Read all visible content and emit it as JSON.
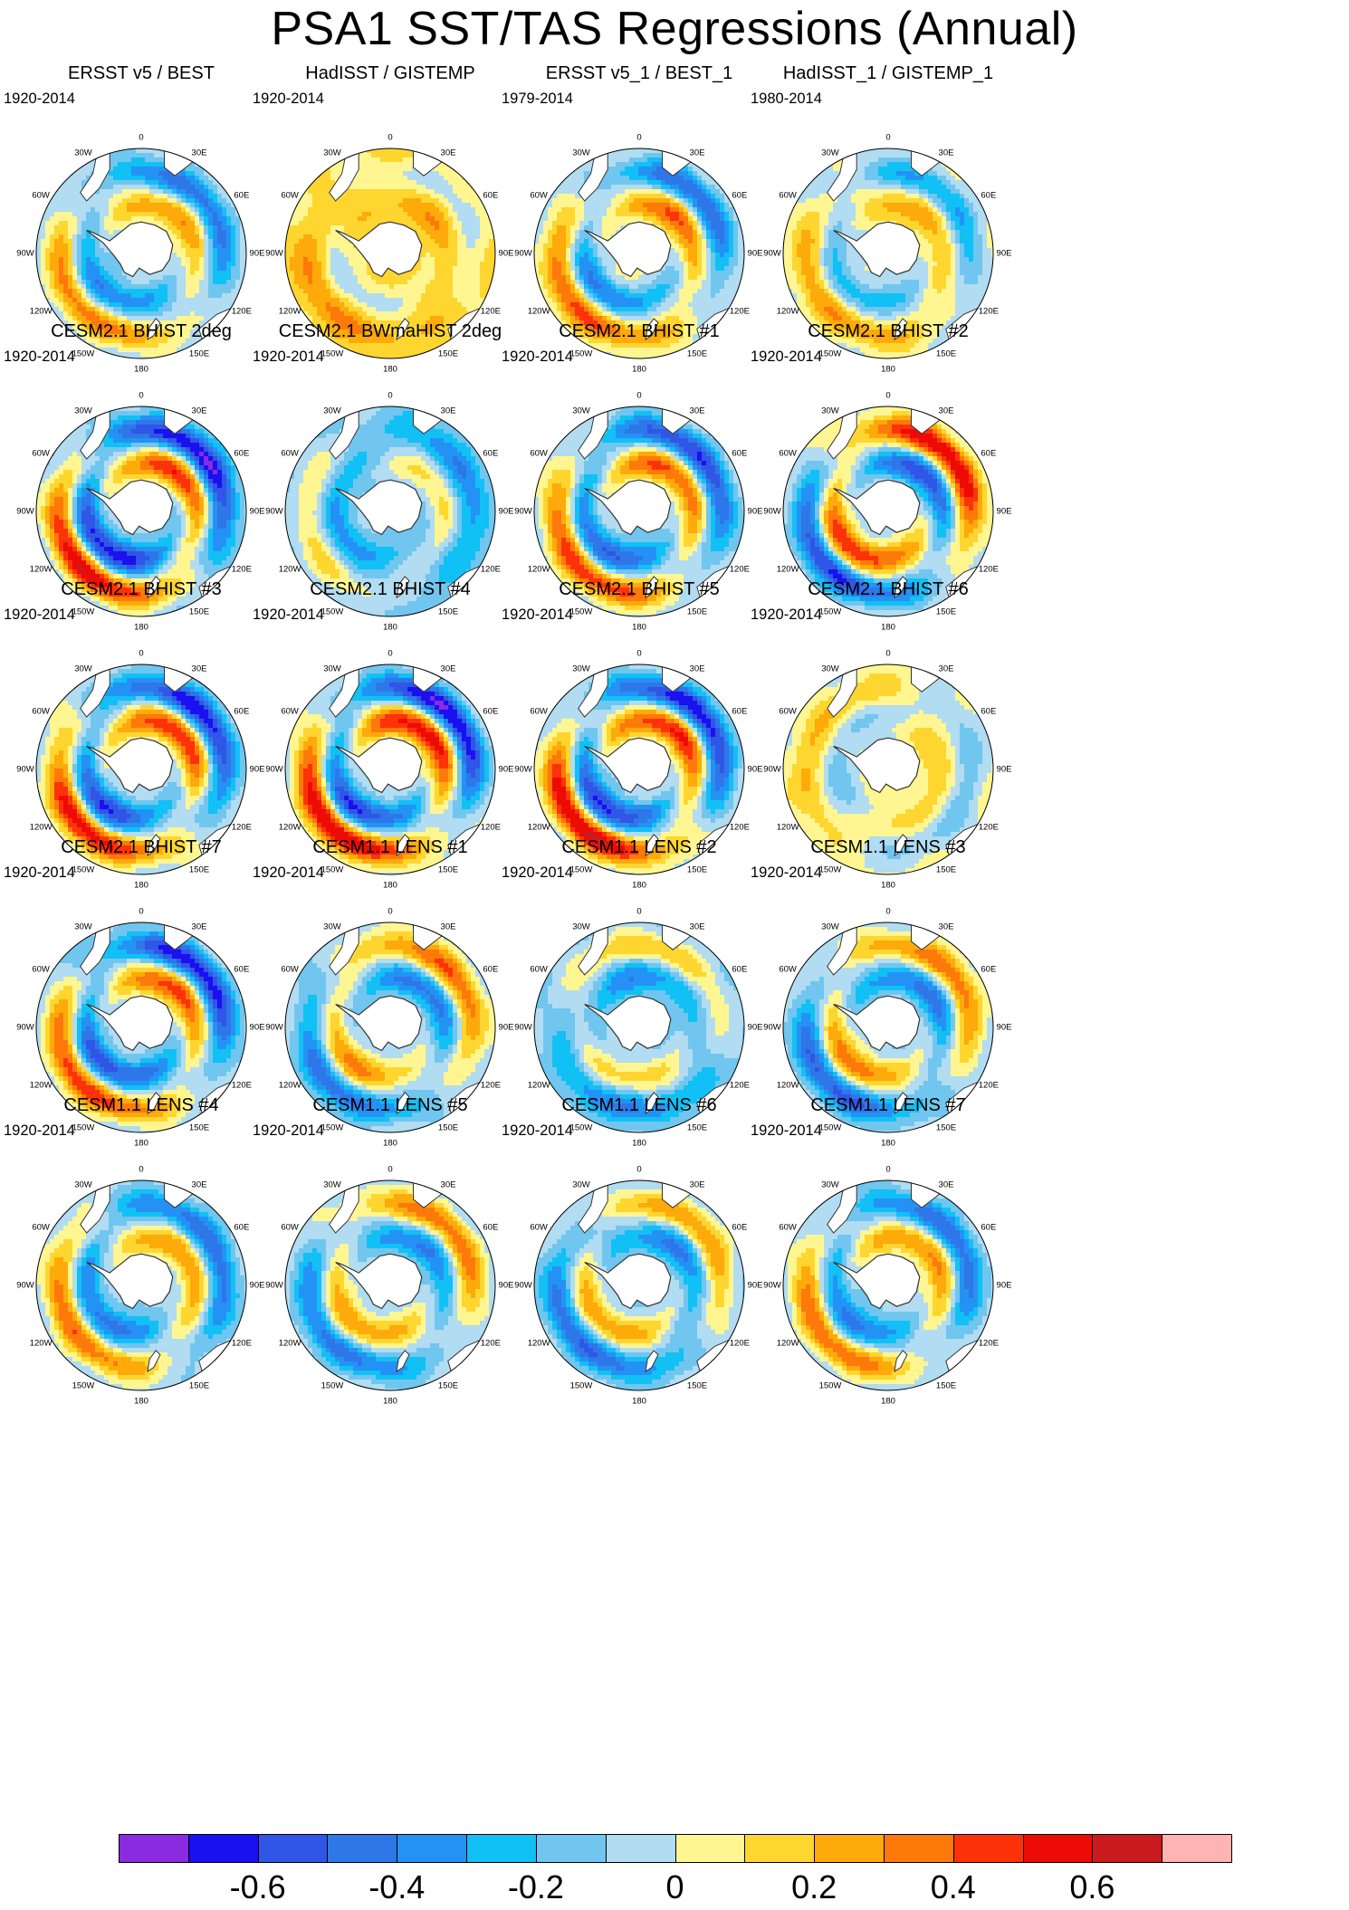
{
  "title": "PSA1 SST/TAS Regressions (Annual)",
  "lon_labels": [
    "0",
    "30E",
    "60E",
    "90E",
    "120E",
    "150E",
    "180",
    "150W",
    "120W",
    "90W",
    "60W",
    "30W"
  ],
  "panels": [
    {
      "title": "ERSST v5 / BEST",
      "period": "1920-2014",
      "pattern": {
        "amp": 0.42,
        "shift": 0.0,
        "base": -0.05
      }
    },
    {
      "title": "HadISST / GISTEMP",
      "period": "1920-2014",
      "pattern": {
        "amp": 0.18,
        "shift": 0.0,
        "base": 0.12
      }
    },
    {
      "title": "ERSST v5_1 / BEST_1",
      "period": "1979-2014",
      "pattern": {
        "amp": 0.45,
        "shift": 0.0,
        "base": -0.02
      }
    },
    {
      "title": "HadISST_1 / GISTEMP_1",
      "period": "1980-2014",
      "pattern": {
        "amp": 0.32,
        "shift": 0.0,
        "base": 0.0
      }
    },
    {
      "title": "CESM2.1 BHIST 2deg",
      "period": "1920-2014",
      "pattern": {
        "amp": 0.65,
        "shift": 0.0,
        "base": -0.08
      }
    },
    {
      "title": "CESM2.1 BWmaHIST 2deg",
      "period": "1920-2014",
      "pattern": {
        "amp": 0.25,
        "shift": 0.4,
        "base": -0.12
      }
    },
    {
      "title": "CESM2.1 BHIST #1",
      "period": "1920-2014",
      "pattern": {
        "amp": 0.55,
        "shift": 0.0,
        "base": -0.05
      }
    },
    {
      "title": "CESM2.1 BHIST #2",
      "period": "1920-2014",
      "pattern": {
        "amp": 0.6,
        "shift": 3.14,
        "base": -0.02
      }
    },
    {
      "title": "CESM2.1 BHIST #3",
      "period": "1920-2014",
      "pattern": {
        "amp": 0.6,
        "shift": 0.0,
        "base": -0.05
      }
    },
    {
      "title": "CESM2.1 BHIST #4",
      "period": "1920-2014",
      "pattern": {
        "amp": 0.68,
        "shift": 0.0,
        "base": -0.03
      }
    },
    {
      "title": "CESM2.1 BHIST #5",
      "period": "1920-2014",
      "pattern": {
        "amp": 0.66,
        "shift": 0.0,
        "base": -0.04
      }
    },
    {
      "title": "CESM2.1 BHIST #6",
      "period": "1920-2014",
      "pattern": {
        "amp": 0.2,
        "shift": 1.2,
        "base": 0.02
      }
    },
    {
      "title": "CESM2.1 BHIST #7",
      "period": "1920-2014",
      "pattern": {
        "amp": 0.58,
        "shift": 0.0,
        "base": -0.07
      }
    },
    {
      "title": "CESM1.1 LENS #1",
      "period": "1920-2014",
      "pattern": {
        "amp": 0.42,
        "shift": 3.14,
        "base": -0.05
      }
    },
    {
      "title": "CESM1.1 LENS #2",
      "period": "1920-2014",
      "pattern": {
        "amp": 0.3,
        "shift": 2.6,
        "base": -0.1
      }
    },
    {
      "title": "CESM1.1 LENS #3",
      "period": "1920-2014",
      "pattern": {
        "amp": 0.45,
        "shift": 3.14,
        "base": -0.06
      }
    },
    {
      "title": "CESM1.1 LENS #4",
      "period": "1920-2014",
      "pattern": {
        "amp": 0.45,
        "shift": 0.2,
        "base": -0.06
      }
    },
    {
      "title": "CESM1.1 LENS #5",
      "period": "1920-2014",
      "pattern": {
        "amp": 0.42,
        "shift": 3.14,
        "base": -0.05
      }
    },
    {
      "title": "CESM1.1 LENS #6",
      "period": "1920-2014",
      "pattern": {
        "amp": 0.4,
        "shift": 3.14,
        "base": -0.08
      }
    },
    {
      "title": "CESM1.1 LENS #7",
      "period": "1920-2014",
      "pattern": {
        "amp": 0.45,
        "shift": 0.1,
        "base": -0.05
      }
    }
  ],
  "chart_data": {
    "type": "heatmap",
    "title": "PSA1 SST/TAS Regressions (Annual)",
    "projection": "south polar stereographic",
    "levels": [
      -0.7,
      -0.6,
      -0.5,
      -0.4,
      -0.3,
      -0.2,
      -0.1,
      0,
      0.1,
      0.2,
      0.3,
      0.4,
      0.5,
      0.6,
      0.7
    ],
    "colors": [
      "#8a2be2",
      "#1a10f0",
      "#2f56e6",
      "#2e77e8",
      "#2492f5",
      "#11c0f5",
      "#70c6ee",
      "#b1dcf2",
      "#fff692",
      "#fed62f",
      "#fdaa0a",
      "#fd790a",
      "#fd3208",
      "#ed0b05",
      "#cb1b1e",
      "#ffb4b4"
    ],
    "colorbar_labels": [
      {
        "value": -0.6,
        "label": "-0.6"
      },
      {
        "value": -0.4,
        "label": "-0.4"
      },
      {
        "value": -0.2,
        "label": "-0.2"
      },
      {
        "value": 0,
        "label": "0"
      },
      {
        "value": 0.2,
        "label": "0.2"
      },
      {
        "value": 0.4,
        "label": "0.4"
      },
      {
        "value": 0.6,
        "label": "0.6"
      }
    ]
  }
}
